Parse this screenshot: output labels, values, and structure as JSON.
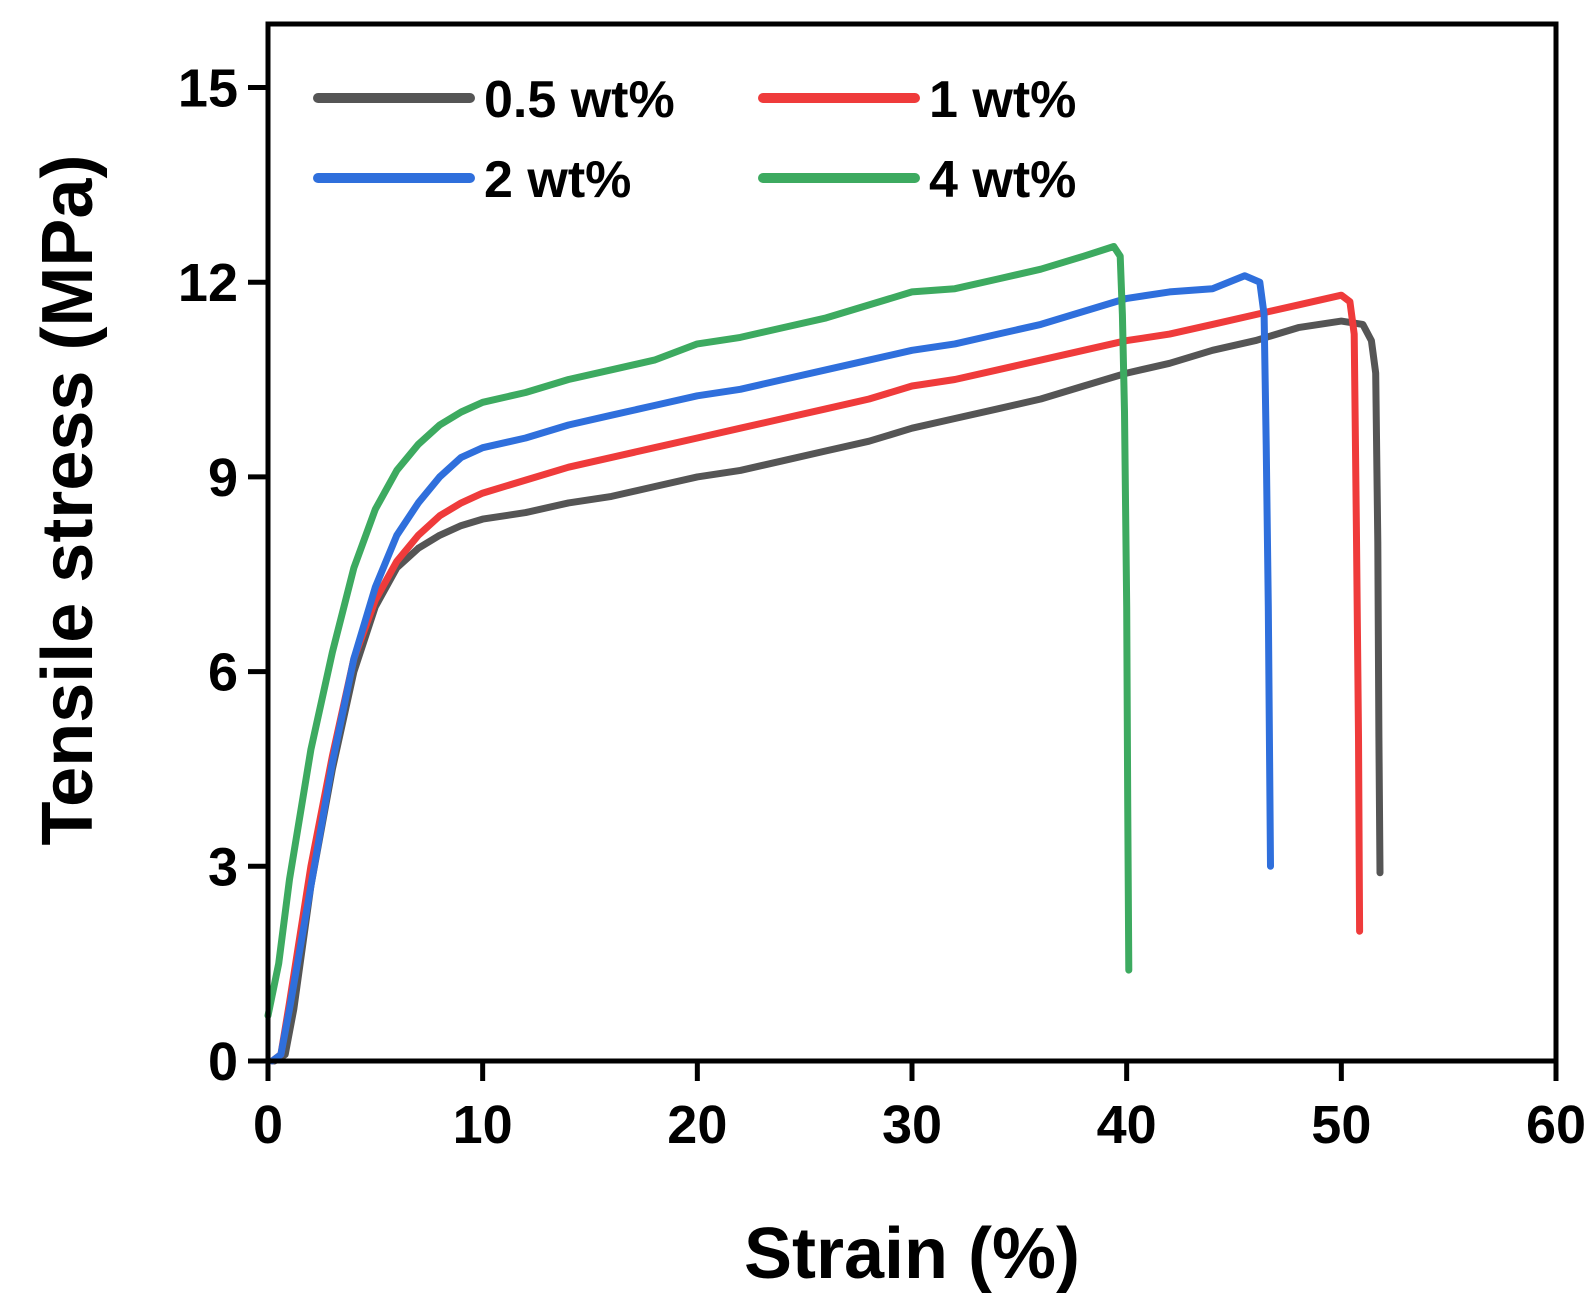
{
  "chart_data": {
    "type": "line",
    "title": "",
    "xlabel": "Strain (%)",
    "ylabel": "Tensile stress (MPa)",
    "xlim": [
      0,
      60
    ],
    "ylim": [
      0,
      16
    ],
    "xticks": [
      0,
      10,
      20,
      30,
      40,
      50,
      60
    ],
    "yticks": [
      0,
      3,
      6,
      9,
      12,
      15
    ],
    "grid": false,
    "legend_position": "top-left",
    "series": [
      {
        "name": "0.5 wt%",
        "color": "#555555",
        "points": [
          [
            0.3,
            0
          ],
          [
            0.8,
            0.1
          ],
          [
            1.2,
            0.8
          ],
          [
            2,
            2.7
          ],
          [
            3,
            4.5
          ],
          [
            4,
            6.0
          ],
          [
            5,
            7.0
          ],
          [
            6,
            7.6
          ],
          [
            7,
            7.9
          ],
          [
            8,
            8.1
          ],
          [
            9,
            8.25
          ],
          [
            10,
            8.35
          ],
          [
            12,
            8.45
          ],
          [
            14,
            8.6
          ],
          [
            16,
            8.7
          ],
          [
            18,
            8.85
          ],
          [
            20,
            9.0
          ],
          [
            22,
            9.1
          ],
          [
            24,
            9.25
          ],
          [
            26,
            9.4
          ],
          [
            28,
            9.55
          ],
          [
            30,
            9.75
          ],
          [
            32,
            9.9
          ],
          [
            34,
            10.05
          ],
          [
            36,
            10.2
          ],
          [
            38,
            10.4
          ],
          [
            40,
            10.6
          ],
          [
            42,
            10.75
          ],
          [
            44,
            10.95
          ],
          [
            46,
            11.1
          ],
          [
            48,
            11.3
          ],
          [
            50,
            11.4
          ],
          [
            51,
            11.35
          ],
          [
            51.4,
            11.1
          ],
          [
            51.6,
            10.6
          ],
          [
            51.7,
            8
          ],
          [
            51.75,
            5
          ],
          [
            51.8,
            2.9
          ]
        ]
      },
      {
        "name": "1 wt%",
        "color": "#ef3b3b",
        "points": [
          [
            0.2,
            0
          ],
          [
            0.6,
            0.1
          ],
          [
            1,
            0.9
          ],
          [
            2,
            3.0
          ],
          [
            3,
            4.7
          ],
          [
            4,
            6.2
          ],
          [
            5,
            7.1
          ],
          [
            6,
            7.7
          ],
          [
            7,
            8.1
          ],
          [
            8,
            8.4
          ],
          [
            9,
            8.6
          ],
          [
            10,
            8.75
          ],
          [
            12,
            8.95
          ],
          [
            14,
            9.15
          ],
          [
            16,
            9.3
          ],
          [
            18,
            9.45
          ],
          [
            20,
            9.6
          ],
          [
            22,
            9.75
          ],
          [
            24,
            9.9
          ],
          [
            26,
            10.05
          ],
          [
            28,
            10.2
          ],
          [
            30,
            10.4
          ],
          [
            32,
            10.5
          ],
          [
            34,
            10.65
          ],
          [
            36,
            10.8
          ],
          [
            38,
            10.95
          ],
          [
            40,
            11.1
          ],
          [
            42,
            11.2
          ],
          [
            44,
            11.35
          ],
          [
            46,
            11.5
          ],
          [
            48,
            11.65
          ],
          [
            50,
            11.8
          ],
          [
            50.4,
            11.7
          ],
          [
            50.6,
            11.2
          ],
          [
            50.7,
            8.2
          ],
          [
            50.8,
            5
          ],
          [
            50.85,
            2.0
          ]
        ]
      },
      {
        "name": "2 wt%",
        "color": "#2f6fdc",
        "points": [
          [
            0.2,
            0
          ],
          [
            0.6,
            0.1
          ],
          [
            1,
            0.8
          ],
          [
            2,
            2.7
          ],
          [
            3,
            4.6
          ],
          [
            4,
            6.2
          ],
          [
            5,
            7.3
          ],
          [
            6,
            8.1
          ],
          [
            7,
            8.6
          ],
          [
            8,
            9.0
          ],
          [
            9,
            9.3
          ],
          [
            10,
            9.45
          ],
          [
            12,
            9.6
          ],
          [
            14,
            9.8
          ],
          [
            16,
            9.95
          ],
          [
            18,
            10.1
          ],
          [
            20,
            10.25
          ],
          [
            22,
            10.35
          ],
          [
            24,
            10.5
          ],
          [
            26,
            10.65
          ],
          [
            28,
            10.8
          ],
          [
            30,
            10.95
          ],
          [
            32,
            11.05
          ],
          [
            34,
            11.2
          ],
          [
            36,
            11.35
          ],
          [
            38,
            11.55
          ],
          [
            40,
            11.75
          ],
          [
            42,
            11.85
          ],
          [
            44,
            11.9
          ],
          [
            45.5,
            12.1
          ],
          [
            46.2,
            12.0
          ],
          [
            46.4,
            11.5
          ],
          [
            46.5,
            9.5
          ],
          [
            46.6,
            7
          ],
          [
            46.7,
            3.0
          ]
        ]
      },
      {
        "name": "4 wt%",
        "color": "#3daa60",
        "points": [
          [
            0,
            0.7
          ],
          [
            0.5,
            1.5
          ],
          [
            1,
            2.8
          ],
          [
            2,
            4.8
          ],
          [
            3,
            6.3
          ],
          [
            4,
            7.6
          ],
          [
            5,
            8.5
          ],
          [
            6,
            9.1
          ],
          [
            7,
            9.5
          ],
          [
            8,
            9.8
          ],
          [
            9,
            10.0
          ],
          [
            10,
            10.15
          ],
          [
            12,
            10.3
          ],
          [
            14,
            10.5
          ],
          [
            16,
            10.65
          ],
          [
            18,
            10.8
          ],
          [
            20,
            11.05
          ],
          [
            22,
            11.15
          ],
          [
            24,
            11.3
          ],
          [
            26,
            11.45
          ],
          [
            28,
            11.65
          ],
          [
            30,
            11.85
          ],
          [
            32,
            11.9
          ],
          [
            34,
            12.05
          ],
          [
            36,
            12.2
          ],
          [
            38,
            12.4
          ],
          [
            39.4,
            12.55
          ],
          [
            39.7,
            12.4
          ],
          [
            39.8,
            11.5
          ],
          [
            39.9,
            10
          ],
          [
            40.0,
            7
          ],
          [
            40.05,
            4
          ],
          [
            40.1,
            1.4
          ]
        ]
      }
    ]
  }
}
